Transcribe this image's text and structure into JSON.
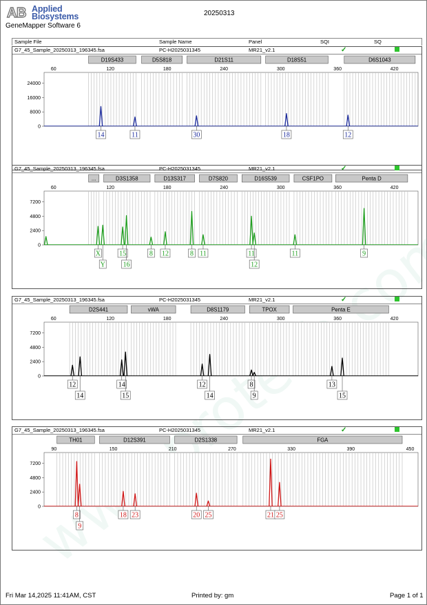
{
  "header": {
    "brand_line1": "Applied",
    "brand_line2": "Biosystems",
    "software": "GeneMapper Software 6",
    "date": "20250313"
  },
  "columns": [
    "Sample File",
    "Sample Name",
    "Panel",
    "SQI",
    "SQ"
  ],
  "panels": [
    {
      "sample_file": "G7_45_Sample_20250313_196345.fsa",
      "sample_name": "PC-H2025031345",
      "panel": "MR21_v2.1"
    },
    {
      "sample_file": "G7_45_Sample_20250313_196345.fsa",
      "sample_name": "PC-H2025031345",
      "panel": "MR21_v2.1"
    },
    {
      "sample_file": "G7_45_Sample_20250313_196345.fsa",
      "sample_name": "PC-H2025031345",
      "panel": "MR21_v2.1"
    },
    {
      "sample_file": "G7_45_Sample_20250313_196345.fsa",
      "sample_name": "PC-H2025031345",
      "panel": "MR21_v2.1"
    }
  ],
  "colors": {
    "blue": "#1b2a9c",
    "green": "#1e9e1e",
    "black": "#000000",
    "red": "#d01818",
    "sq_ok": "#2ec42e",
    "check": "#19a019"
  },
  "chart_data": [
    {
      "type": "line",
      "dye": "blue",
      "xlim": [
        50,
        445
      ],
      "ylim": [
        0,
        30000
      ],
      "x_ticks": [
        60,
        120,
        180,
        240,
        300,
        360,
        420
      ],
      "y_ticks": [
        0,
        8000,
        16000,
        24000
      ],
      "markers": [
        {
          "label": "D19S433",
          "x0": 97,
          "x1": 147
        },
        {
          "label": "D5S818",
          "x0": 153,
          "x1": 196
        },
        {
          "label": "D21S11",
          "x0": 201,
          "x1": 279
        },
        {
          "label": "D18S51",
          "x0": 284,
          "x1": 350
        },
        {
          "label": "D6S1043",
          "x0": 367,
          "x1": 442
        }
      ],
      "peaks": [
        {
          "x": 110,
          "height": 11000
        },
        {
          "x": 146,
          "height": 5200
        },
        {
          "x": 211,
          "height": 5800
        },
        {
          "x": 306,
          "height": 7100
        },
        {
          "x": 371,
          "height": 6200
        }
      ],
      "alleles": [
        {
          "x": 110,
          "labels": [
            "14"
          ]
        },
        {
          "x": 146,
          "labels": [
            "11"
          ]
        },
        {
          "x": 211,
          "labels": [
            "30"
          ]
        },
        {
          "x": 306,
          "labels": [
            "18"
          ]
        },
        {
          "x": 371,
          "labels": [
            "12"
          ]
        }
      ]
    },
    {
      "type": "line",
      "dye": "green",
      "xlim": [
        50,
        445
      ],
      "ylim": [
        0,
        9000
      ],
      "x_ticks": [
        60,
        120,
        180,
        240,
        300,
        360,
        420
      ],
      "y_ticks": [
        0,
        2400,
        4800,
        7200
      ],
      "markers": [
        {
          "label": "...",
          "x0": 97,
          "x1": 108
        },
        {
          "label": "D3S1358",
          "x0": 113,
          "x1": 162
        },
        {
          "label": "D13S317",
          "x0": 167,
          "x1": 209
        },
        {
          "label": "D7S820",
          "x0": 214,
          "x1": 254
        },
        {
          "label": "D16S539",
          "x0": 259,
          "x1": 309
        },
        {
          "label": "CSF1PO",
          "x0": 314,
          "x1": 354
        },
        {
          "label": "Penta D",
          "x0": 358,
          "x1": 434
        }
      ],
      "peaks": [
        {
          "x": 52,
          "height": 1400
        },
        {
          "x": 107,
          "height": 3100
        },
        {
          "x": 112,
          "height": 3300
        },
        {
          "x": 133,
          "height": 3000
        },
        {
          "x": 137,
          "height": 4900
        },
        {
          "x": 163,
          "height": 1300
        },
        {
          "x": 178,
          "height": 2200
        },
        {
          "x": 206,
          "height": 5600
        },
        {
          "x": 218,
          "height": 1700
        },
        {
          "x": 269,
          "height": 4800
        },
        {
          "x": 272,
          "height": 2000
        },
        {
          "x": 315,
          "height": 1700
        },
        {
          "x": 388,
          "height": 6100
        }
      ],
      "alleles": [
        {
          "x": 107,
          "labels": [
            "X"
          ]
        },
        {
          "x": 112,
          "labels": [
            "",
            "Y"
          ]
        },
        {
          "x": 133,
          "labels": [
            "15"
          ]
        },
        {
          "x": 137,
          "labels": [
            "",
            "16"
          ]
        },
        {
          "x": 163,
          "labels": [
            "8"
          ]
        },
        {
          "x": 178,
          "labels": [
            "12"
          ]
        },
        {
          "x": 206,
          "labels": [
            "8"
          ]
        },
        {
          "x": 218,
          "labels": [
            "11"
          ]
        },
        {
          "x": 269,
          "labels": [
            "11"
          ]
        },
        {
          "x": 272,
          "labels": [
            "",
            "12"
          ]
        },
        {
          "x": 315,
          "labels": [
            "11"
          ]
        },
        {
          "x": 388,
          "labels": [
            "9"
          ]
        }
      ]
    },
    {
      "type": "line",
      "dye": "black",
      "xlim": [
        50,
        445
      ],
      "ylim": [
        0,
        9000
      ],
      "x_ticks": [
        60,
        120,
        180,
        240,
        300,
        360,
        420
      ],
      "y_ticks": [
        0,
        2400,
        4800,
        7200
      ],
      "markers": [
        {
          "label": "D2S441",
          "x0": 77,
          "x1": 138
        },
        {
          "label": "vWA",
          "x0": 142,
          "x1": 189
        },
        {
          "label": "D8S1179",
          "x0": 205,
          "x1": 262
        },
        {
          "label": "TPOX",
          "x0": 267,
          "x1": 309
        },
        {
          "label": "Penta E",
          "x0": 313,
          "x1": 414
        }
      ],
      "peaks": [
        {
          "x": 80,
          "height": 1800
        },
        {
          "x": 88,
          "height": 3200
        },
        {
          "x": 132,
          "height": 2700
        },
        {
          "x": 136,
          "height": 4000
        },
        {
          "x": 217,
          "height": 2000
        },
        {
          "x": 225,
          "height": 3600
        },
        {
          "x": 269,
          "height": 1000
        },
        {
          "x": 272,
          "height": 600
        },
        {
          "x": 354,
          "height": 1600
        },
        {
          "x": 365,
          "height": 3000
        }
      ],
      "alleles": [
        {
          "x": 80,
          "labels": [
            "12"
          ]
        },
        {
          "x": 88,
          "labels": [
            "",
            "14"
          ]
        },
        {
          "x": 132,
          "labels": [
            "14"
          ]
        },
        {
          "x": 136,
          "labels": [
            "",
            "15"
          ]
        },
        {
          "x": 217,
          "labels": [
            "12"
          ]
        },
        {
          "x": 225,
          "labels": [
            "",
            "14"
          ]
        },
        {
          "x": 269,
          "labels": [
            "8"
          ]
        },
        {
          "x": 272,
          "labels": [
            "",
            "9"
          ]
        },
        {
          "x": 354,
          "labels": [
            "13"
          ]
        },
        {
          "x": 365,
          "labels": [
            "",
            "15"
          ]
        }
      ]
    },
    {
      "type": "line",
      "dye": "red",
      "xlim": [
        80,
        458
      ],
      "ylim": [
        0,
        9000
      ],
      "x_ticks": [
        90,
        150,
        210,
        270,
        330,
        390,
        450
      ],
      "y_ticks": [
        0,
        2400,
        4800,
        7200
      ],
      "markers": [
        {
          "label": "TH01",
          "x0": 93,
          "x1": 131
        },
        {
          "label": "D12S391",
          "x0": 136,
          "x1": 207
        },
        {
          "label": "D2S1338",
          "x0": 212,
          "x1": 275
        },
        {
          "label": "FGA",
          "x0": 281,
          "x1": 442
        }
      ],
      "peaks": [
        {
          "x": 113,
          "height": 7500
        },
        {
          "x": 116,
          "height": 3700
        },
        {
          "x": 160,
          "height": 2500
        },
        {
          "x": 172,
          "height": 2100
        },
        {
          "x": 234,
          "height": 2200
        },
        {
          "x": 246,
          "height": 900
        },
        {
          "x": 309,
          "height": 7900
        },
        {
          "x": 318,
          "height": 4000
        }
      ],
      "alleles": [
        {
          "x": 113,
          "labels": [
            "8"
          ]
        },
        {
          "x": 116,
          "labels": [
            "",
            "9"
          ]
        },
        {
          "x": 160,
          "labels": [
            "18"
          ]
        },
        {
          "x": 172,
          "labels": [
            "23"
          ]
        },
        {
          "x": 234,
          "labels": [
            "20"
          ]
        },
        {
          "x": 246,
          "labels": [
            "25"
          ]
        },
        {
          "x": 309,
          "labels": [
            "21"
          ]
        },
        {
          "x": 318,
          "labels": [
            "25"
          ]
        }
      ]
    }
  ],
  "footer": {
    "timestamp": "Fri Mar 14,2025 11:41AM, CST",
    "printed_by": "Printed by: gm",
    "page": "Page 1 of 1"
  }
}
